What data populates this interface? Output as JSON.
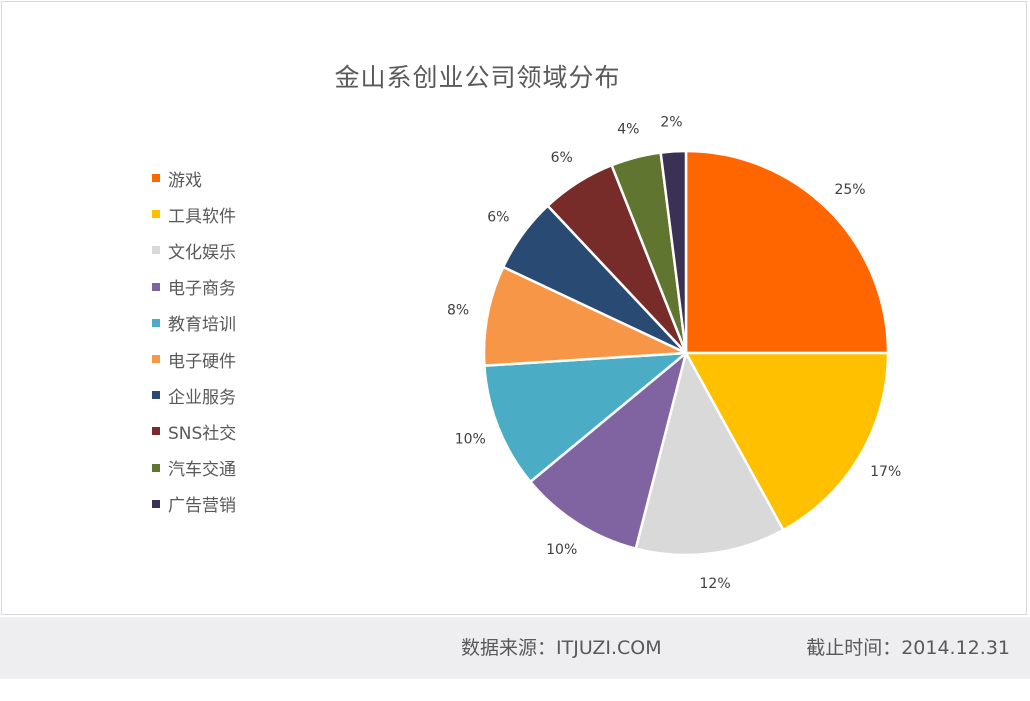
{
  "chart_data": {
    "type": "pie",
    "title": "金山系创业公司领域分布",
    "legend_position": "left",
    "slices": [
      {
        "label": "游戏",
        "value": 25,
        "display": "25%",
        "color": "#ff6600"
      },
      {
        "label": "工具软件",
        "value": 17,
        "display": "17%",
        "color": "#ffc000"
      },
      {
        "label": "文化娱乐",
        "value": 12,
        "display": "12%",
        "color": "#d9d9d9"
      },
      {
        "label": "电子商务",
        "value": 10,
        "display": "10%",
        "color": "#8064a2"
      },
      {
        "label": "教育培训",
        "value": 10,
        "display": "10%",
        "color": "#4bacc6"
      },
      {
        "label": "电子硬件",
        "value": 8,
        "display": "8%",
        "color": "#f79646"
      },
      {
        "label": "企业服务",
        "value": 6,
        "display": "6%",
        "color": "#284a73"
      },
      {
        "label": "SNS社交",
        "value": 6,
        "display": "6%",
        "color": "#772c2a"
      },
      {
        "label": "汽车交通",
        "value": 4,
        "display": "4%",
        "color": "#5f7530"
      },
      {
        "label": "广告营销",
        "value": 2,
        "display": "2%",
        "color": "#3b3155"
      }
    ]
  },
  "footer": {
    "source": "数据来源：ITJUZI.COM",
    "date": "截止时间：2014.12.31"
  }
}
